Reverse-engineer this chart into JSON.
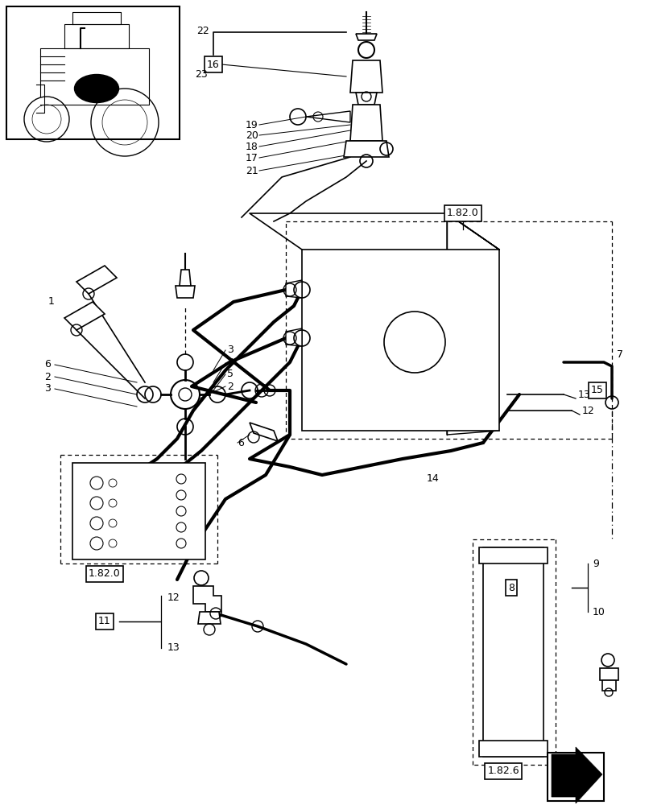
{
  "bg_color": "#ffffff",
  "lc": "#000000",
  "fig_width": 8.12,
  "fig_height": 10.0
}
